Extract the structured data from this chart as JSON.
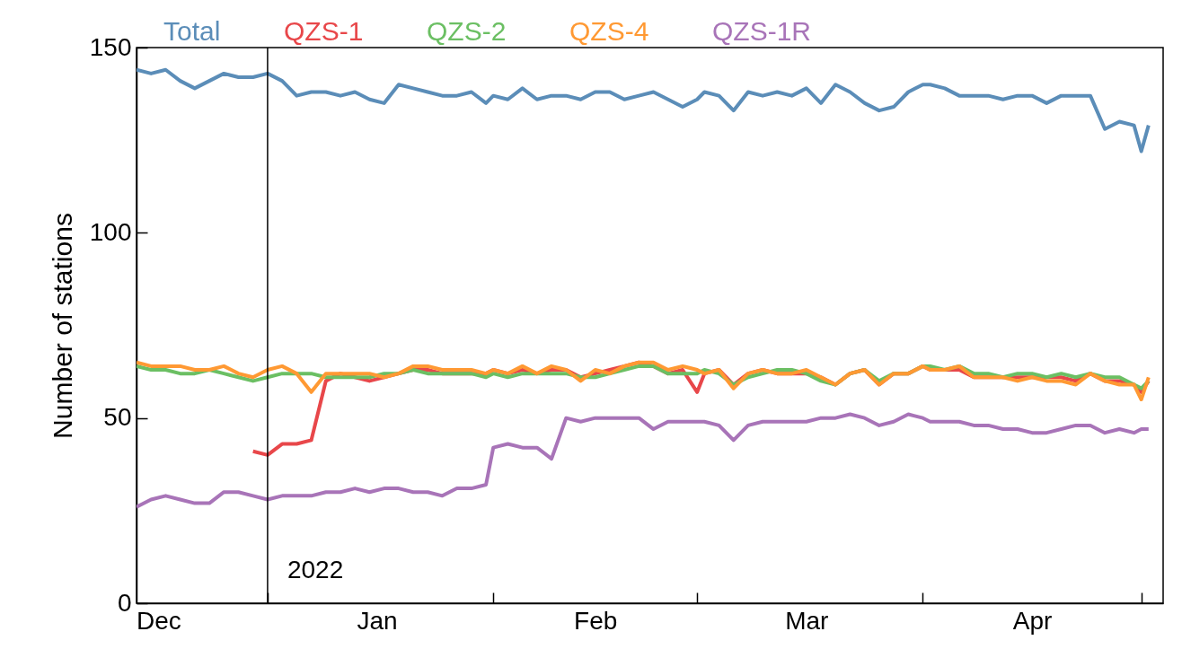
{
  "chart_data": {
    "type": "line",
    "ylabel": "Number of stations",
    "x": [
      "2021-12-14",
      "2021-12-16",
      "2021-12-18",
      "2021-12-20",
      "2021-12-22",
      "2021-12-24",
      "2021-12-26",
      "2021-12-28",
      "2021-12-30",
      "2022-01-01",
      "2022-01-03",
      "2022-01-05",
      "2022-01-07",
      "2022-01-09",
      "2022-01-11",
      "2022-01-13",
      "2022-01-15",
      "2022-01-17",
      "2022-01-19",
      "2022-01-21",
      "2022-01-23",
      "2022-01-25",
      "2022-01-27",
      "2022-01-29",
      "2022-01-31",
      "2022-02-01",
      "2022-02-03",
      "2022-02-05",
      "2022-02-07",
      "2022-02-09",
      "2022-02-11",
      "2022-02-13",
      "2022-02-15",
      "2022-02-17",
      "2022-02-19",
      "2022-02-21",
      "2022-02-23",
      "2022-02-25",
      "2022-02-27",
      "2022-03-01",
      "2022-03-02",
      "2022-03-04",
      "2022-03-06",
      "2022-03-08",
      "2022-03-10",
      "2022-03-12",
      "2022-03-14",
      "2022-03-16",
      "2022-03-18",
      "2022-03-20",
      "2022-03-22",
      "2022-03-24",
      "2022-03-26",
      "2022-03-28",
      "2022-03-30",
      "2022-04-01",
      "2022-04-02",
      "2022-04-04",
      "2022-04-06",
      "2022-04-08",
      "2022-04-10",
      "2022-04-12",
      "2022-04-14",
      "2022-04-16",
      "2022-04-18",
      "2022-04-20",
      "2022-04-22",
      "2022-04-24",
      "2022-04-26",
      "2022-04-28",
      "2022-04-30",
      "2022-05-01",
      "2022-05-02"
    ],
    "series": [
      {
        "name": "Total",
        "color": "#5b8db8",
        "values": [
          144,
          143,
          144,
          141,
          139,
          141,
          143,
          142,
          142,
          143,
          141,
          137,
          138,
          138,
          137,
          138,
          136,
          135,
          140,
          139,
          138,
          137,
          137,
          138,
          135,
          137,
          136,
          139,
          136,
          137,
          137,
          136,
          138,
          138,
          136,
          137,
          138,
          136,
          134,
          136,
          138,
          137,
          133,
          138,
          137,
          138,
          137,
          139,
          135,
          140,
          138,
          135,
          133,
          134,
          138,
          140,
          140,
          139,
          137,
          137,
          137,
          136,
          137,
          137,
          135,
          137,
          137,
          137,
          128,
          130,
          129,
          122,
          129
        ]
      },
      {
        "name": "QZS-1",
        "color": "#e8474a",
        "values": [
          null,
          null,
          null,
          null,
          null,
          null,
          null,
          null,
          41,
          40,
          43,
          43,
          44,
          60,
          62,
          61,
          60,
          61,
          62,
          63,
          63,
          62,
          62,
          62,
          62,
          63,
          62,
          63,
          62,
          63,
          63,
          61,
          62,
          63,
          64,
          65,
          64,
          62,
          63,
          57,
          62,
          63,
          59,
          62,
          63,
          62,
          62,
          62,
          61,
          59,
          62,
          63,
          59,
          62,
          62,
          64,
          63,
          63,
          63,
          61,
          61,
          61,
          61,
          61,
          61,
          61,
          60,
          62,
          60,
          60,
          59,
          57,
          60
        ]
      },
      {
        "name": "QZS-2",
        "color": "#6bbf63",
        "values": [
          64,
          63,
          63,
          62,
          62,
          63,
          62,
          61,
          60,
          61,
          62,
          62,
          62,
          61,
          61,
          61,
          61,
          62,
          62,
          63,
          62,
          62,
          62,
          62,
          61,
          62,
          61,
          62,
          62,
          62,
          62,
          61,
          61,
          62,
          63,
          64,
          64,
          62,
          62,
          62,
          63,
          62,
          59,
          61,
          62,
          63,
          63,
          62,
          60,
          59,
          62,
          63,
          60,
          62,
          62,
          64,
          64,
          63,
          64,
          62,
          62,
          61,
          62,
          62,
          61,
          62,
          61,
          62,
          61,
          61,
          59,
          58,
          60
        ]
      },
      {
        "name": "QZS-4",
        "color": "#ff9933",
        "values": [
          65,
          64,
          64,
          64,
          63,
          63,
          64,
          62,
          61,
          63,
          64,
          62,
          57,
          62,
          62,
          62,
          62,
          61,
          62,
          64,
          64,
          63,
          63,
          63,
          62,
          63,
          62,
          64,
          62,
          64,
          63,
          60,
          63,
          62,
          64,
          65,
          65,
          63,
          64,
          63,
          62,
          63,
          58,
          62,
          63,
          62,
          62,
          63,
          61,
          59,
          62,
          63,
          59,
          62,
          62,
          64,
          63,
          63,
          64,
          61,
          61,
          61,
          60,
          61,
          60,
          60,
          59,
          62,
          60,
          59,
          59,
          55,
          61
        ]
      },
      {
        "name": "QZS-1R",
        "color": "#a874b8",
        "values": [
          26,
          28,
          29,
          28,
          27,
          27,
          30,
          30,
          29,
          28,
          29,
          29,
          29,
          30,
          30,
          31,
          30,
          31,
          31,
          30,
          30,
          29,
          31,
          31,
          32,
          42,
          43,
          42,
          42,
          39,
          50,
          49,
          50,
          50,
          50,
          50,
          47,
          49,
          49,
          49,
          49,
          48,
          44,
          48,
          49,
          49,
          49,
          49,
          50,
          50,
          51,
          50,
          48,
          49,
          51,
          50,
          49,
          49,
          49,
          48,
          48,
          47,
          47,
          46,
          46,
          47,
          48,
          48,
          46,
          47,
          46,
          47,
          47
        ]
      }
    ],
    "xlim": [
      "2021-12-14",
      "2022-05-04"
    ],
    "xticks": [
      {
        "value": "2021-12-17",
        "label": "Dec"
      },
      {
        "value": "2022-01-01",
        "label": null
      },
      {
        "value": "2022-01-16",
        "label": "Jan"
      },
      {
        "value": "2022-02-01",
        "label": null
      },
      {
        "value": "2022-02-15",
        "label": "Feb"
      },
      {
        "value": "2022-03-01",
        "label": null
      },
      {
        "value": "2022-03-16",
        "label": "Mar"
      },
      {
        "value": "2022-04-01",
        "label": null
      },
      {
        "value": "2022-04-16",
        "label": "Apr"
      },
      {
        "value": "2022-05-01",
        "label": null
      }
    ],
    "ylim": [
      0,
      150
    ],
    "yticks": [
      0,
      50,
      100,
      150
    ],
    "ref_lines": [
      {
        "axis": "x",
        "value": "2022-01-01",
        "label": "2022",
        "color": "#000000"
      }
    ],
    "legend": "top",
    "grid": false,
    "marker": "none",
    "line_style": "solid"
  }
}
